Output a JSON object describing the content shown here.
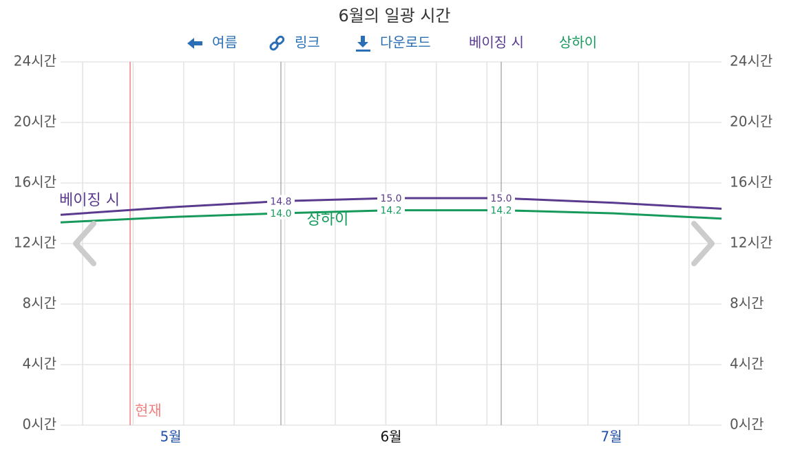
{
  "chart_data": {
    "type": "line",
    "title": "6월의 일광 시간",
    "nav": {
      "back": "여름",
      "link": "링크",
      "download": "다운로드"
    },
    "now_label": "현재",
    "categories": [
      null,
      "5월",
      null,
      "6월",
      null,
      "7월",
      null
    ],
    "series": [
      {
        "name": "베이징 시",
        "color": "#5a3a8f",
        "values": [
          13.9,
          14.4,
          14.8,
          15.0,
          15.0,
          14.7,
          14.3
        ],
        "value_labels": [
          null,
          null,
          "14.8",
          "15.0",
          "15.0",
          null,
          null
        ]
      },
      {
        "name": "상하이",
        "color": "#159a5c",
        "values": [
          13.4,
          13.75,
          14.0,
          14.2,
          14.2,
          14.0,
          13.65
        ],
        "value_labels": [
          null,
          null,
          "14.0",
          "14.2",
          "14.2",
          null,
          null
        ]
      }
    ],
    "ylim": [
      0,
      24
    ],
    "yticks": [
      {
        "value": 0,
        "label": "0시간"
      },
      {
        "value": 4,
        "label": "4시간"
      },
      {
        "value": 8,
        "label": "8시간"
      },
      {
        "value": 12,
        "label": "12시간"
      },
      {
        "value": 16,
        "label": "16시간"
      },
      {
        "value": 20,
        "label": "20시간"
      },
      {
        "value": 24,
        "label": "24시간"
      }
    ],
    "grid": true
  }
}
